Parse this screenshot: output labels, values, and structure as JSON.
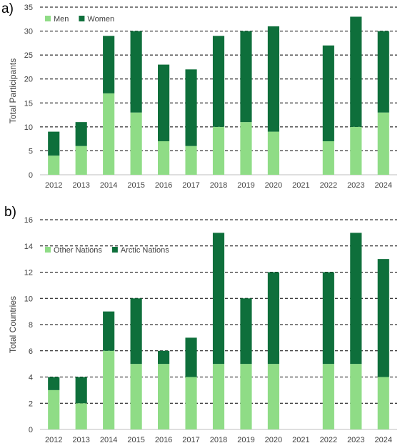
{
  "colors": {
    "light": "#8fdc86",
    "dark": "#0e6f3b",
    "grid": "#000000",
    "text": "#404040"
  },
  "chart_data": [
    {
      "type": "bar",
      "stacked": true,
      "panel_label": "a)",
      "ylabel": "Total Participants",
      "ylim": [
        0,
        35
      ],
      "yticks": [
        0,
        5,
        10,
        15,
        20,
        25,
        30,
        35
      ],
      "categories": [
        "2012",
        "2013",
        "2014",
        "2015",
        "2016",
        "2017",
        "2018",
        "2019",
        "2020",
        "2021",
        "2022",
        "2023",
        "2024"
      ],
      "legend_position": "top-left",
      "grid": true,
      "series": [
        {
          "name": "Men",
          "color": "#8fdc86",
          "values": [
            4,
            6,
            17,
            13,
            7,
            6,
            10,
            11,
            9,
            0,
            7,
            10,
            13
          ]
        },
        {
          "name": "Women",
          "color": "#0e6f3b",
          "values": [
            5,
            5,
            12,
            17,
            16,
            16,
            19,
            19,
            22,
            0,
            20,
            23,
            17
          ]
        }
      ]
    },
    {
      "type": "bar",
      "stacked": true,
      "panel_label": "b)",
      "ylabel": "Total Countries",
      "ylim": [
        0,
        16
      ],
      "yticks": [
        0,
        2,
        4,
        6,
        8,
        10,
        12,
        14,
        16
      ],
      "categories": [
        "2012",
        "2013",
        "2014",
        "2015",
        "2016",
        "2017",
        "2018",
        "2019",
        "2020",
        "2021",
        "2022",
        "2023",
        "2024"
      ],
      "legend_position": "top-left",
      "grid": true,
      "series": [
        {
          "name": "Other Nations",
          "color": "#8fdc86",
          "values": [
            3,
            2,
            6,
            5,
            5,
            4,
            5,
            5,
            5,
            0,
            5,
            5,
            4
          ]
        },
        {
          "name": "Arctic Nations",
          "color": "#0e6f3b",
          "values": [
            1,
            2,
            3,
            5,
            1,
            3,
            10,
            5,
            7,
            0,
            7,
            10,
            9
          ]
        }
      ]
    }
  ]
}
